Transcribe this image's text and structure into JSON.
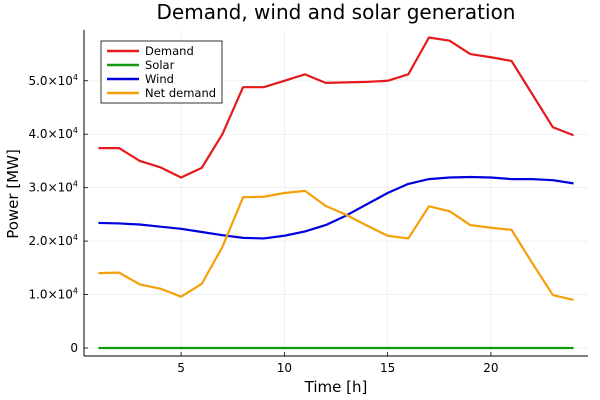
{
  "chart_data": {
    "type": "line",
    "title": "Demand, wind and solar generation",
    "xlabel": "Time [h]",
    "ylabel": "Power [MW]",
    "xlim": [
      0.3,
      24.7
    ],
    "ylim": [
      -1500,
      59500
    ],
    "x_ticks": [
      {
        "value": 5,
        "label": "5"
      },
      {
        "value": 10,
        "label": "10"
      },
      {
        "value": 15,
        "label": "15"
      },
      {
        "value": 20,
        "label": "20"
      }
    ],
    "y_ticks": [
      {
        "value": 0,
        "mantissa": "0",
        "exp": ""
      },
      {
        "value": 10000,
        "mantissa": "1.0×10",
        "exp": "4"
      },
      {
        "value": 20000,
        "mantissa": "2.0×10",
        "exp": "4"
      },
      {
        "value": 30000,
        "mantissa": "3.0×10",
        "exp": "4"
      },
      {
        "value": 40000,
        "mantissa": "4.0×10",
        "exp": "4"
      },
      {
        "value": 50000,
        "mantissa": "5.0×10",
        "exp": "4"
      }
    ],
    "grid": true,
    "legend_position": "top-left",
    "x": [
      1,
      2,
      3,
      4,
      5,
      6,
      7,
      8,
      9,
      10,
      11,
      12,
      13,
      14,
      15,
      16,
      17,
      18,
      19,
      20,
      21,
      22,
      23,
      24
    ],
    "series": [
      {
        "name": "Demand",
        "color": "#e41a1c",
        "values": [
          37400,
          37400,
          35000,
          33800,
          31900,
          33700,
          40000,
          48800,
          48800,
          50000,
          51200,
          49600,
          49700,
          49800,
          50000,
          51200,
          58100,
          57500,
          55000,
          54400,
          53700,
          47500,
          41300,
          39800
        ]
      },
      {
        "name": "Solar",
        "color": "#119911",
        "values": [
          0,
          0,
          0,
          0,
          0,
          0,
          0,
          0,
          0,
          0,
          0,
          0,
          0,
          0,
          0,
          0,
          0,
          0,
          0,
          0,
          0,
          0,
          0,
          0
        ]
      },
      {
        "name": "Wind",
        "color": "#0000dd",
        "values": [
          23400,
          23300,
          23100,
          22700,
          22300,
          21700,
          21100,
          20600,
          20500,
          21000,
          21800,
          23000,
          24800,
          26900,
          29000,
          30700,
          31600,
          31900,
          32000,
          31900,
          31600,
          31600,
          31400,
          30800
        ]
      },
      {
        "name": "Net demand",
        "color": "#f5a00a",
        "values": [
          14000,
          14100,
          11900,
          11100,
          9600,
          12000,
          18900,
          28200,
          28300,
          29000,
          29400,
          26600,
          24900,
          22900,
          21000,
          20500,
          26500,
          25600,
          23000,
          22500,
          22100,
          15900,
          9900,
          9000
        ]
      }
    ]
  }
}
